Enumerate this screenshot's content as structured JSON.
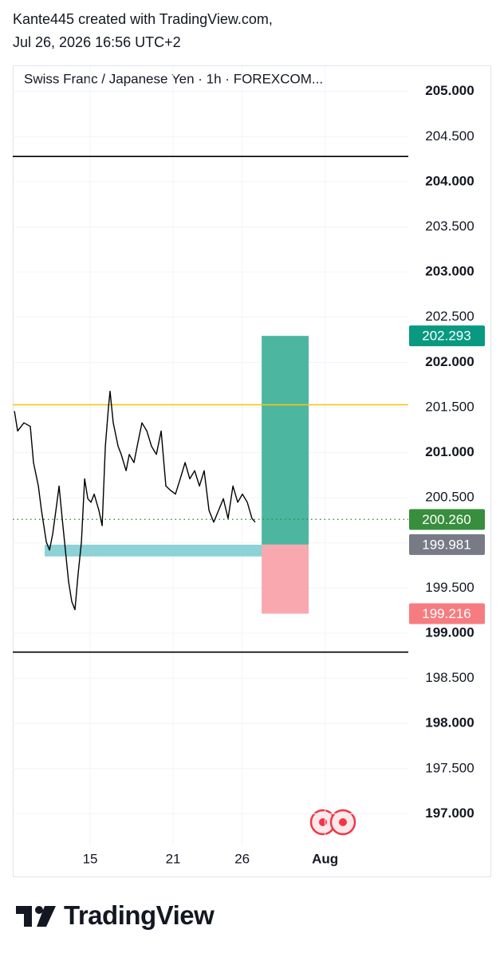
{
  "header": {
    "line1": "Kante445 created with TradingView.com,",
    "line2": "Jul 26, 2026 16:56 UTC+2"
  },
  "brand": "TradingView",
  "chart_data": {
    "type": "line",
    "title": "Swiss Franc / Japanese Yen · 1h · FOREXCOM...",
    "xlim": [
      9.4,
      38.02
    ],
    "xticks": [
      15,
      21,
      26,
      {
        "value": 32,
        "label": "Aug"
      }
    ],
    "ylim": [
      196.65,
      205.28
    ],
    "yticks": [
      {
        "value": 197,
        "label": "197.000"
      },
      {
        "value": 197.5,
        "label": "197.500"
      },
      {
        "value": 198,
        "label": "198.000"
      },
      {
        "value": 198.5,
        "label": "198.500"
      },
      {
        "value": 199,
        "label": "199.000"
      },
      {
        "value": 199.5,
        "label": "199.500"
      },
      {
        "value": 200,
        "label": "200.000"
      },
      {
        "value": 200.5,
        "label": "200.500"
      },
      {
        "value": 201,
        "label": "201.000"
      },
      {
        "value": 201.5,
        "label": "201.500"
      },
      {
        "value": 202,
        "label": "202.000"
      },
      {
        "value": 202.5,
        "label": "202.500"
      },
      {
        "value": 203,
        "label": "203.000"
      },
      {
        "value": 203.5,
        "label": "203.500"
      },
      {
        "value": 204,
        "label": "204.000"
      },
      {
        "value": 204.5,
        "label": "204.500"
      },
      {
        "value": 205,
        "label": "205.000"
      }
    ],
    "grid": true,
    "series": [
      {
        "color": "#000000",
        "x": [
          9.52,
          9.75,
          10.21,
          10.67,
          10.9,
          11.25,
          11.48,
          11.83,
          12.06,
          12.29,
          12.52,
          12.75,
          12.98,
          13.21,
          13.44,
          13.67,
          13.9,
          14.13,
          14.37,
          14.6,
          14.83,
          15.06,
          15.29,
          15.63,
          15.87,
          16.1,
          16.33,
          16.44,
          16.67,
          17.02,
          17.25,
          17.6,
          17.83,
          18.17,
          18.4,
          18.75,
          19.1,
          19.44,
          19.79,
          20.14,
          20.48,
          20.83,
          21.17,
          21.52,
          21.87,
          22.21,
          22.56,
          22.91,
          23.25,
          23.6,
          23.94,
          24.29,
          24.64,
          24.98,
          25.33,
          25.68,
          26.02,
          26.37,
          26.71,
          26.94
        ],
        "values": [
          201.46,
          201.24,
          201.33,
          201.29,
          200.89,
          200.63,
          200.36,
          200.01,
          199.92,
          200.1,
          200.36,
          200.63,
          200.27,
          199.92,
          199.57,
          199.35,
          199.26,
          199.66,
          200.01,
          200.71,
          200.49,
          200.45,
          200.54,
          200.36,
          200.19,
          201.07,
          201.51,
          201.68,
          201.33,
          201.07,
          200.98,
          200.8,
          200.98,
          200.89,
          201.07,
          201.33,
          201.24,
          201.07,
          200.98,
          201.24,
          200.63,
          200.58,
          200.54,
          200.71,
          200.89,
          200.71,
          200.8,
          200.63,
          200.8,
          200.36,
          200.23,
          200.36,
          200.49,
          200.27,
          200.63,
          200.45,
          200.54,
          200.45,
          200.27,
          200.23
        ]
      }
    ],
    "hlines": [
      {
        "value": 204.28,
        "color": "#000000"
      },
      {
        "value": 201.53,
        "color": "#f5c518"
      },
      {
        "value": 198.79,
        "color": "#000000"
      }
    ],
    "zone": {
      "x": [
        11.71,
        28.91
      ],
      "y": [
        199.85,
        199.98
      ],
      "color": "#7fcdd2"
    },
    "position": {
      "x": [
        27.41,
        30.81
      ],
      "entry": 199.981,
      "target": 202.293,
      "stop": 199.216,
      "profit_color": "#4db6a0",
      "loss_color": "#f8a8ae"
    },
    "last_price": {
      "value": 200.26,
      "color": "#388e3c"
    },
    "price_labels": [
      {
        "value": 202.293,
        "label": "202.293",
        "color": "#089981"
      },
      {
        "value": 200.26,
        "label": "200.260",
        "color": "#388e3c"
      },
      {
        "value": 199.981,
        "label": "199.981",
        "color": "#787b86"
      },
      {
        "value": 199.216,
        "label": "199.216",
        "color": "#f77c80"
      }
    ]
  }
}
